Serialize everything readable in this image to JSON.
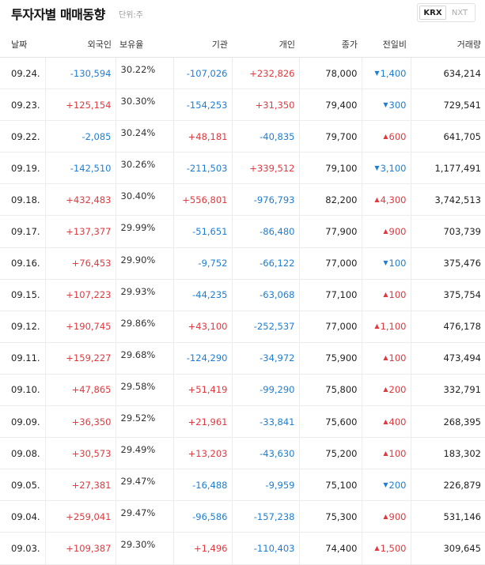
{
  "header": {
    "title": "투자자별 매매동향",
    "unit": "단위:주",
    "market_options": [
      "KRX",
      "NXT"
    ],
    "selected_market": "KRX"
  },
  "colors": {
    "up": "#e0393e",
    "down": "#1f7ed3"
  },
  "table": {
    "columns": [
      "날짜",
      "외국인",
      "보유율",
      "기관",
      "개인",
      "종가",
      "전일비",
      "거래량"
    ],
    "rows": [
      {
        "date": "09.24.",
        "foreign": "-130,594",
        "hold": "30.22%",
        "inst": "-107,026",
        "indiv": "+232,826",
        "close": "78,000",
        "change_dir": "down",
        "change": "1,400",
        "volume": "634,214"
      },
      {
        "date": "09.23.",
        "foreign": "+125,154",
        "hold": "30.30%",
        "inst": "-154,253",
        "indiv": "+31,350",
        "close": "79,400",
        "change_dir": "down",
        "change": "300",
        "volume": "729,541"
      },
      {
        "date": "09.22.",
        "foreign": "-2,085",
        "hold": "30.24%",
        "inst": "+48,181",
        "indiv": "-40,835",
        "close": "79,700",
        "change_dir": "up",
        "change": "600",
        "volume": "641,705"
      },
      {
        "date": "09.19.",
        "foreign": "-142,510",
        "hold": "30.26%",
        "inst": "-211,503",
        "indiv": "+339,512",
        "close": "79,100",
        "change_dir": "down",
        "change": "3,100",
        "volume": "1,177,491"
      },
      {
        "date": "09.18.",
        "foreign": "+432,483",
        "hold": "30.40%",
        "inst": "+556,801",
        "indiv": "-976,793",
        "close": "82,200",
        "change_dir": "up",
        "change": "4,300",
        "volume": "3,742,513"
      },
      {
        "date": "09.17.",
        "foreign": "+137,377",
        "hold": "29.99%",
        "inst": "-51,651",
        "indiv": "-86,480",
        "close": "77,900",
        "change_dir": "up",
        "change": "900",
        "volume": "703,739"
      },
      {
        "date": "09.16.",
        "foreign": "+76,453",
        "hold": "29.90%",
        "inst": "-9,752",
        "indiv": "-66,122",
        "close": "77,000",
        "change_dir": "down",
        "change": "100",
        "volume": "375,476"
      },
      {
        "date": "09.15.",
        "foreign": "+107,223",
        "hold": "29.93%",
        "inst": "-44,235",
        "indiv": "-63,068",
        "close": "77,100",
        "change_dir": "up",
        "change": "100",
        "volume": "375,754"
      },
      {
        "date": "09.12.",
        "foreign": "+190,745",
        "hold": "29.86%",
        "inst": "+43,100",
        "indiv": "-252,537",
        "close": "77,000",
        "change_dir": "up",
        "change": "1,100",
        "volume": "476,178"
      },
      {
        "date": "09.11.",
        "foreign": "+159,227",
        "hold": "29.68%",
        "inst": "-124,290",
        "indiv": "-34,972",
        "close": "75,900",
        "change_dir": "up",
        "change": "100",
        "volume": "473,494"
      },
      {
        "date": "09.10.",
        "foreign": "+47,865",
        "hold": "29.58%",
        "inst": "+51,419",
        "indiv": "-99,290",
        "close": "75,800",
        "change_dir": "up",
        "change": "200",
        "volume": "332,791"
      },
      {
        "date": "09.09.",
        "foreign": "+36,350",
        "hold": "29.52%",
        "inst": "+21,961",
        "indiv": "-33,841",
        "close": "75,600",
        "change_dir": "up",
        "change": "400",
        "volume": "268,395"
      },
      {
        "date": "09.08.",
        "foreign": "+30,573",
        "hold": "29.49%",
        "inst": "+13,203",
        "indiv": "-43,630",
        "close": "75,200",
        "change_dir": "up",
        "change": "100",
        "volume": "183,302"
      },
      {
        "date": "09.05.",
        "foreign": "+27,381",
        "hold": "29.47%",
        "inst": "-16,488",
        "indiv": "-9,959",
        "close": "75,100",
        "change_dir": "down",
        "change": "200",
        "volume": "226,879"
      },
      {
        "date": "09.04.",
        "foreign": "+259,041",
        "hold": "29.47%",
        "inst": "-96,586",
        "indiv": "-157,238",
        "close": "75,300",
        "change_dir": "up",
        "change": "900",
        "volume": "531,146"
      },
      {
        "date": "09.03.",
        "foreign": "+109,387",
        "hold": "29.30%",
        "inst": "+1,496",
        "indiv": "-110,403",
        "close": "74,400",
        "change_dir": "up",
        "change": "1,500",
        "volume": "309,645"
      }
    ]
  }
}
